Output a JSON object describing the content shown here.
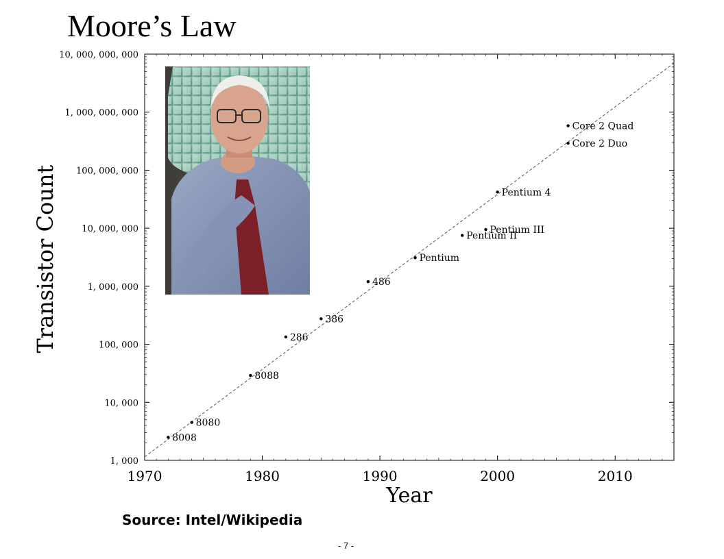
{
  "slide": {
    "title": "Moore’s Law",
    "source": "Source: Intel/Wikipedia",
    "page_number": "- 7 -"
  },
  "photo": {
    "subject": "portrait photograph of a man in front of a silicon wafer"
  },
  "chart_data": {
    "type": "scatter",
    "xlabel": "Year",
    "ylabel": "Transistor Count",
    "xlim": [
      1970,
      2015
    ],
    "ylim": [
      1000,
      10000000000
    ],
    "yscale": "log",
    "x_ticks": [
      1970,
      1980,
      1990,
      2000,
      2010
    ],
    "x_tick_labels": [
      "1970",
      "1980",
      "1990",
      "2000",
      "2010"
    ],
    "y_ticks": [
      1000,
      10000,
      100000,
      1000000,
      10000000,
      100000000,
      1000000000,
      10000000000
    ],
    "y_tick_labels": [
      "1, 000",
      "10, 000",
      "100, 000",
      "1, 000, 000",
      "10, 000, 000",
      "100, 000, 000",
      "1, 000, 000, 000",
      "10, 000, 000, 000"
    ],
    "grid": false,
    "points": [
      {
        "label": "8008",
        "x": 1972,
        "y": 2500
      },
      {
        "label": "8080",
        "x": 1974,
        "y": 4500
      },
      {
        "label": "8088",
        "x": 1979,
        "y": 29000
      },
      {
        "label": "286",
        "x": 1982,
        "y": 134000
      },
      {
        "label": "386",
        "x": 1985,
        "y": 275000
      },
      {
        "label": "486",
        "x": 1989,
        "y": 1200000
      },
      {
        "label": "Pentium",
        "x": 1993,
        "y": 3100000
      },
      {
        "label": "Pentium II",
        "x": 1997,
        "y": 7500000
      },
      {
        "label": "Pentium III",
        "x": 1999,
        "y": 9500000
      },
      {
        "label": "Pentium 4",
        "x": 2000,
        "y": 42000000
      },
      {
        "label": "Core 2 Duo",
        "x": 2006,
        "y": 291000000
      },
      {
        "label": "Core 2 Quad",
        "x": 2006,
        "y": 582000000
      }
    ],
    "trend_line": {
      "style": "dashed",
      "from": [
        1970,
        1150
      ],
      "to": [
        2015,
        7000000000
      ]
    }
  }
}
